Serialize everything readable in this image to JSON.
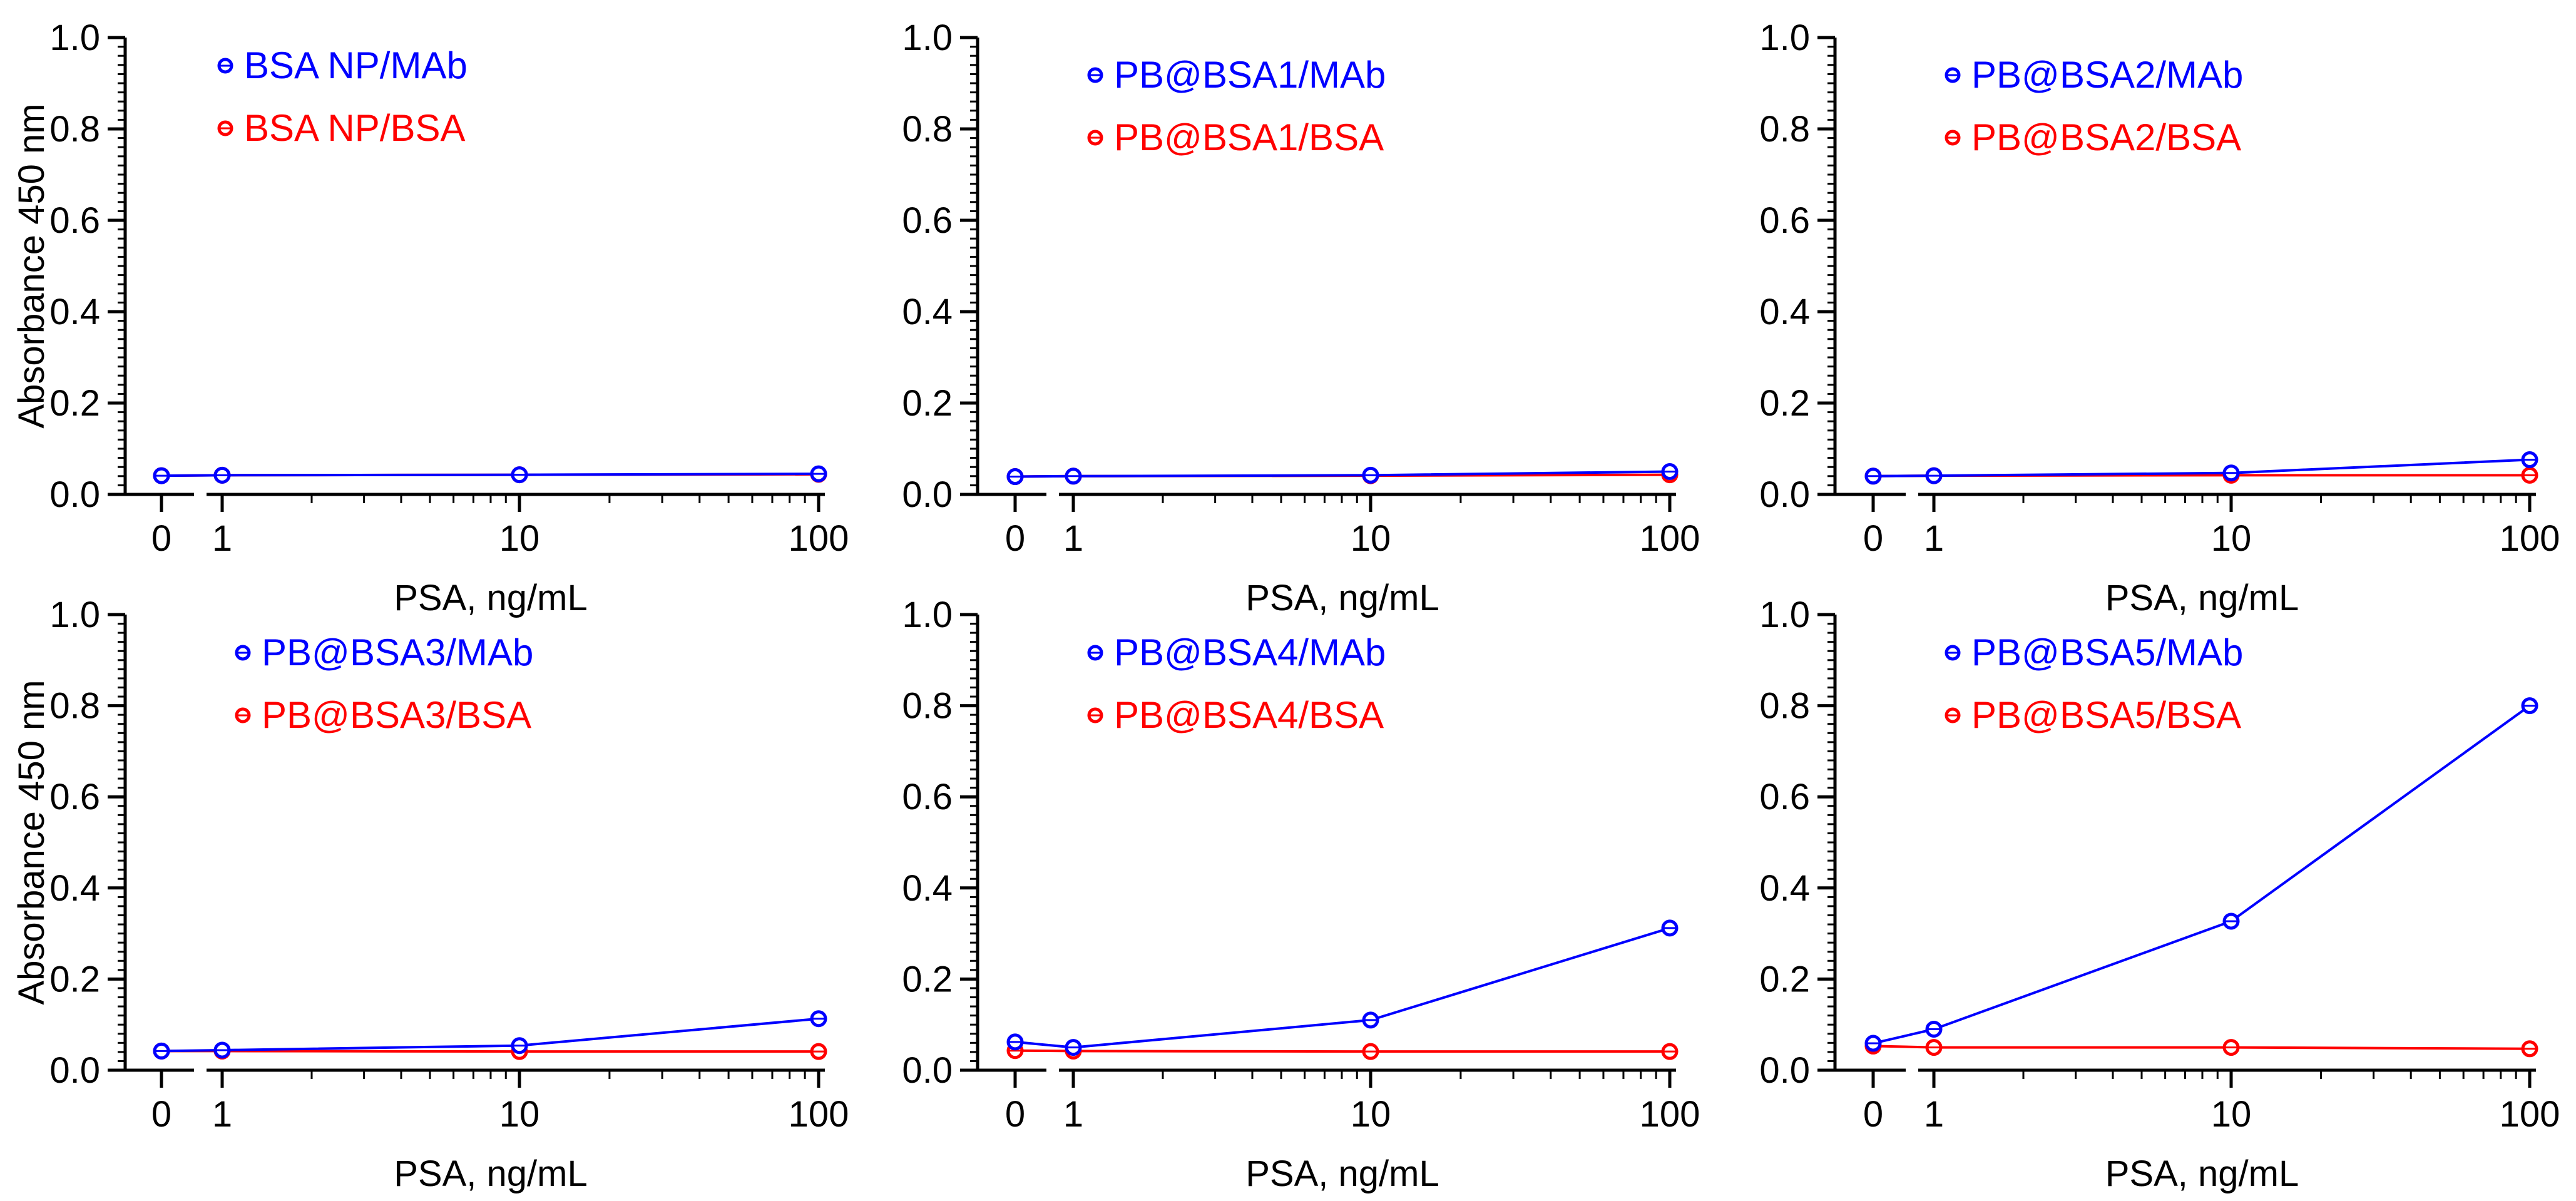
{
  "colors": {
    "mab": "#0000ff",
    "bsa": "#ff0000",
    "axis": "#000000"
  },
  "chart_data": [
    {
      "type": "line",
      "xscale": "log with broken axis at 0",
      "categories": [
        "0",
        "1",
        "10",
        "100"
      ],
      "xlabel": "PSA, ng/mL",
      "ylabel": "Absorbance 450 nm",
      "ylim": [
        0,
        1.0
      ],
      "yticks": [
        "0.0",
        "0.2",
        "0.4",
        "0.6",
        "0.8",
        "1.0"
      ],
      "legend_position": "top-left",
      "series": [
        {
          "name": "BSA NP/MAb",
          "color": "#0000ff",
          "values": [
            0.041,
            0.042,
            0.043,
            0.045
          ]
        },
        {
          "name": "BSA NP/BSA",
          "color": "#ff0000",
          "values": [
            0.041,
            0.042,
            0.043,
            0.044
          ]
        }
      ]
    },
    {
      "type": "line",
      "xscale": "log with broken axis at 0",
      "categories": [
        "0",
        "1",
        "10",
        "100"
      ],
      "xlabel": "PSA, ng/mL",
      "ylabel": "",
      "ylim": [
        0,
        1.0
      ],
      "yticks": [
        "0.0",
        "0.2",
        "0.4",
        "0.6",
        "0.8",
        "1.0"
      ],
      "legend_position": "top-center",
      "series": [
        {
          "name": "PB@BSA1/MAb",
          "color": "#0000ff",
          "values": [
            0.039,
            0.04,
            0.042,
            0.05
          ]
        },
        {
          "name": "PB@BSA1/BSA",
          "color": "#ff0000",
          "values": [
            0.039,
            0.04,
            0.041,
            0.043
          ]
        }
      ]
    },
    {
      "type": "line",
      "xscale": "log with broken axis at 0",
      "categories": [
        "0",
        "1",
        "10",
        "100"
      ],
      "xlabel": "PSA, ng/mL",
      "ylabel": "",
      "ylim": [
        0,
        1.0
      ],
      "yticks": [
        "0.0",
        "0.2",
        "0.4",
        "0.6",
        "0.8",
        "1.0"
      ],
      "legend_position": "top-center",
      "series": [
        {
          "name": "PB@BSA2/MAb",
          "color": "#0000ff",
          "values": [
            0.04,
            0.041,
            0.047,
            0.076
          ]
        },
        {
          "name": "PB@BSA2/BSA",
          "color": "#ff0000",
          "values": [
            0.04,
            0.041,
            0.042,
            0.042
          ]
        }
      ]
    },
    {
      "type": "line",
      "xscale": "log with broken axis at 0",
      "categories": [
        "0",
        "1",
        "10",
        "100"
      ],
      "xlabel": "PSA, ng/mL",
      "ylabel": "Absorbance 450 nm",
      "ylim": [
        0,
        1.0
      ],
      "yticks": [
        "0.0",
        "0.2",
        "0.4",
        "0.6",
        "0.8",
        "1.0"
      ],
      "legend_position": "top-center",
      "series": [
        {
          "name": "PB@BSA3/MAb",
          "color": "#0000ff",
          "values": [
            0.042,
            0.044,
            0.054,
            0.113
          ]
        },
        {
          "name": "PB@BSA3/BSA",
          "color": "#ff0000",
          "values": [
            0.042,
            0.042,
            0.041,
            0.041
          ]
        }
      ]
    },
    {
      "type": "line",
      "xscale": "log with broken axis at 0",
      "categories": [
        "0",
        "1",
        "10",
        "100"
      ],
      "xlabel": "PSA, ng/mL",
      "ylabel": "",
      "ylim": [
        0,
        1.0
      ],
      "yticks": [
        "0.0",
        "0.2",
        "0.4",
        "0.6",
        "0.8",
        "1.0"
      ],
      "legend_position": "top-center",
      "series": [
        {
          "name": "PB@BSA4/MAb",
          "color": "#0000ff",
          "values": [
            0.062,
            0.05,
            0.11,
            0.312
          ]
        },
        {
          "name": "PB@BSA4/BSA",
          "color": "#ff0000",
          "values": [
            0.043,
            0.042,
            0.041,
            0.041
          ]
        }
      ]
    },
    {
      "type": "line",
      "xscale": "log with broken axis at 0",
      "categories": [
        "0",
        "1",
        "10",
        "100"
      ],
      "xlabel": "PSA, ng/mL",
      "ylabel": "",
      "ylim": [
        0,
        1.0
      ],
      "yticks": [
        "0.0",
        "0.2",
        "0.4",
        "0.6",
        "0.8",
        "1.0"
      ],
      "legend_position": "top-center",
      "series": [
        {
          "name": "PB@BSA5/MAb",
          "color": "#0000ff",
          "values": [
            0.059,
            0.09,
            0.327,
            0.8
          ]
        },
        {
          "name": "PB@BSA5/BSA",
          "color": "#ff0000",
          "values": [
            0.053,
            0.05,
            0.05,
            0.047
          ]
        }
      ]
    }
  ]
}
